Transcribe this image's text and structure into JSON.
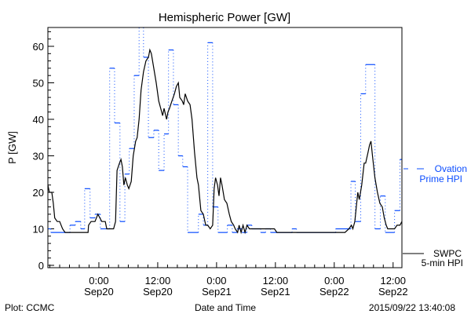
{
  "chart_data": {
    "type": "line",
    "title": "Hemispheric Power [GW]",
    "xlabel": "Date and Time",
    "ylabel": "P [GW]",
    "x_units": "hours since 2015-09-20 00:00 UT",
    "xlim": [
      -10.4,
      61.8
    ],
    "ylim": [
      0,
      65
    ],
    "yticks": [
      0,
      10,
      20,
      30,
      40,
      50,
      60
    ],
    "xticks": [
      {
        "h": 0,
        "time": "0:00",
        "date": "Sep20"
      },
      {
        "h": 12,
        "time": "12:00",
        "date": "Sep20"
      },
      {
        "h": 24,
        "time": "0:00",
        "date": "Sep21"
      },
      {
        "h": 36,
        "time": "12:00",
        "date": "Sep21"
      },
      {
        "h": 48,
        "time": "0:00",
        "date": "Sep22"
      },
      {
        "h": 60,
        "time": "12:00",
        "date": "Sep22"
      }
    ],
    "series": [
      {
        "name": "Ovation Prime HPI",
        "style": "step-dashed",
        "color": "#0a4cff",
        "steps": [
          [
            -10.4,
            10
          ],
          [
            -9.8,
            9
          ],
          [
            -5.9,
            11
          ],
          [
            -4.8,
            12
          ],
          [
            -3.7,
            10
          ],
          [
            -2.9,
            21
          ],
          [
            -1.8,
            13
          ],
          [
            -0.8,
            14
          ],
          [
            0.3,
            10
          ],
          [
            2.2,
            54
          ],
          [
            3.2,
            39
          ],
          [
            4.3,
            12
          ],
          [
            5.3,
            25
          ],
          [
            6.2,
            32
          ],
          [
            7.2,
            52
          ],
          [
            8.2,
            66
          ],
          [
            9.1,
            57
          ],
          [
            10.1,
            35
          ],
          [
            11.2,
            37
          ],
          [
            12.2,
            26
          ],
          [
            13.3,
            36
          ],
          [
            14.2,
            59
          ],
          [
            15.2,
            44
          ],
          [
            16.2,
            30
          ],
          [
            17.1,
            27
          ],
          [
            18.1,
            9
          ],
          [
            20.3,
            14
          ],
          [
            21.3,
            11
          ],
          [
            22.2,
            61
          ],
          [
            23.2,
            16
          ],
          [
            24.3,
            9
          ],
          [
            26.2,
            11
          ],
          [
            27.2,
            9
          ],
          [
            28.2,
            10
          ],
          [
            29.2,
            9
          ],
          [
            30.2,
            11
          ],
          [
            31.2,
            10
          ],
          [
            33,
            9
          ],
          [
            34,
            10
          ],
          [
            35,
            9
          ],
          [
            39.4,
            10
          ],
          [
            40.3,
            9
          ],
          [
            48.3,
            10
          ],
          [
            51.4,
            23
          ],
          [
            52.3,
            12
          ],
          [
            53.4,
            47
          ],
          [
            54.4,
            55
          ],
          [
            56.3,
            10
          ],
          [
            57.4,
            19
          ],
          [
            58.4,
            9
          ],
          [
            60.3,
            15
          ],
          [
            61.4,
            29
          ]
        ]
      },
      {
        "name": "SWPC 5-min HPI",
        "style": "solid",
        "color": "#000000",
        "points": [
          [
            -10.4,
            22
          ],
          [
            -10.1,
            20
          ],
          [
            -9.6,
            20
          ],
          [
            -9.3,
            17
          ],
          [
            -9.0,
            13
          ],
          [
            -8.5,
            12
          ],
          [
            -8.0,
            12
          ],
          [
            -7.4,
            10
          ],
          [
            -6.9,
            9
          ],
          [
            -2.2,
            9
          ],
          [
            -2.1,
            11
          ],
          [
            -1.6,
            12
          ],
          [
            -0.8,
            12
          ],
          [
            -0.2,
            14
          ],
          [
            0.2,
            13
          ],
          [
            0.6,
            12
          ],
          [
            1.3,
            12
          ],
          [
            1.6,
            10
          ],
          [
            3.0,
            10
          ],
          [
            3.4,
            12
          ],
          [
            3.7,
            26
          ],
          [
            4.2,
            28
          ],
          [
            4.5,
            29
          ],
          [
            4.8,
            27
          ],
          [
            5.1,
            22
          ],
          [
            5.4,
            24
          ],
          [
            5.8,
            22
          ],
          [
            6.1,
            21
          ],
          [
            6.6,
            23
          ],
          [
            7.0,
            30
          ],
          [
            7.5,
            34
          ],
          [
            7.8,
            35
          ],
          [
            8.2,
            40
          ],
          [
            8.6,
            48
          ],
          [
            9.1,
            53
          ],
          [
            9.6,
            56
          ],
          [
            10.1,
            57
          ],
          [
            10.4,
            59
          ],
          [
            10.7,
            58
          ],
          [
            11.2,
            54
          ],
          [
            11.7,
            50
          ],
          [
            12.2,
            45
          ],
          [
            12.6,
            43
          ],
          [
            13.0,
            41
          ],
          [
            13.3,
            43
          ],
          [
            13.8,
            40
          ],
          [
            14.1,
            42
          ],
          [
            14.4,
            43
          ],
          [
            14.9,
            45
          ],
          [
            15.4,
            47
          ],
          [
            15.8,
            49
          ],
          [
            16.2,
            50
          ],
          [
            16.5,
            46
          ],
          [
            17.0,
            45
          ],
          [
            17.3,
            44
          ],
          [
            17.6,
            47
          ],
          [
            18.1,
            45
          ],
          [
            18.6,
            44
          ],
          [
            19.0,
            40
          ],
          [
            19.5,
            31
          ],
          [
            20.0,
            24
          ],
          [
            20.3,
            22
          ],
          [
            20.8,
            15
          ],
          [
            21.3,
            14
          ],
          [
            21.8,
            11
          ],
          [
            22.2,
            11
          ],
          [
            22.7,
            10
          ],
          [
            23.2,
            11
          ],
          [
            23.5,
            21
          ],
          [
            23.8,
            24
          ],
          [
            24.2,
            22
          ],
          [
            24.5,
            19
          ],
          [
            24.8,
            24
          ],
          [
            25.1,
            22
          ],
          [
            25.6,
            18
          ],
          [
            26.1,
            17
          ],
          [
            26.6,
            14
          ],
          [
            27.0,
            12
          ],
          [
            27.5,
            11
          ],
          [
            27.8,
            10
          ],
          [
            28.3,
            9
          ],
          [
            28.6,
            11
          ],
          [
            29.0,
            9
          ],
          [
            29.4,
            11
          ],
          [
            29.8,
            9
          ],
          [
            30.2,
            11
          ],
          [
            30.7,
            10
          ],
          [
            31.4,
            10
          ],
          [
            35.8,
            10
          ],
          [
            36.3,
            9
          ],
          [
            50.2,
            9
          ],
          [
            51.0,
            10
          ],
          [
            51.5,
            11
          ],
          [
            51.8,
            10
          ],
          [
            52.2,
            12
          ],
          [
            52.5,
            16
          ],
          [
            52.8,
            20
          ],
          [
            53.1,
            18
          ],
          [
            53.6,
            22
          ],
          [
            54.1,
            28
          ],
          [
            54.4,
            28
          ],
          [
            54.9,
            31
          ],
          [
            55.2,
            33
          ],
          [
            55.5,
            34
          ],
          [
            55.8,
            30
          ],
          [
            56.3,
            24
          ],
          [
            56.8,
            20
          ],
          [
            57.3,
            17
          ],
          [
            57.8,
            16
          ],
          [
            58.2,
            13
          ],
          [
            58.6,
            11
          ],
          [
            58.9,
            10
          ],
          [
            60.3,
            10
          ],
          [
            60.8,
            11
          ],
          [
            61.4,
            11
          ],
          [
            61.8,
            12
          ]
        ]
      }
    ],
    "legend": {
      "ovation_line1": "Ovation",
      "ovation_line2": "Prime HPI",
      "swpc_line1": "SWPC",
      "swpc_line2": "5-min HPI",
      "placement": "right"
    }
  },
  "footer": {
    "left": "Plot: CCMC",
    "right": "2015/09/22 13:40:08"
  }
}
